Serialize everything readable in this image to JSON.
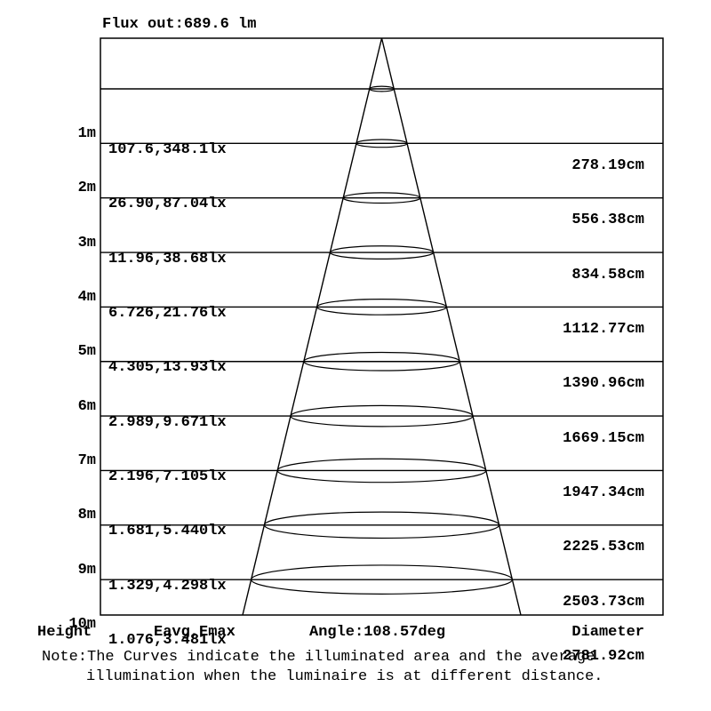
{
  "title": "Flux out:689.6 lm",
  "footer": {
    "height_label": "Height",
    "eavg_emax_label": "Eavg,Emax",
    "angle_label": "Angle:108.57deg",
    "diameter_label": "Diameter"
  },
  "note": {
    "line1": "Note:The Curves indicate the illuminated area and the average",
    "line2": "illumination when the luminaire is at different distance."
  },
  "rows": [
    {
      "height_label": "1m",
      "eavg_emax": "107.6,348.1lx",
      "diameter": "278.19cm"
    },
    {
      "height_label": "2m",
      "eavg_emax": "26.90,87.04lx",
      "diameter": "556.38cm"
    },
    {
      "height_label": "3m",
      "eavg_emax": "11.96,38.68lx",
      "diameter": "834.58cm"
    },
    {
      "height_label": "4m",
      "eavg_emax": "6.726,21.76lx",
      "diameter": "1112.77cm"
    },
    {
      "height_label": "5m",
      "eavg_emax": "4.305,13.93lx",
      "diameter": "1390.96cm"
    },
    {
      "height_label": "6m",
      "eavg_emax": "2.989,9.671lx",
      "diameter": "1669.15cm"
    },
    {
      "height_label": "7m",
      "eavg_emax": "2.196,7.105lx",
      "diameter": "1947.34cm"
    },
    {
      "height_label": "8m",
      "eavg_emax": "1.681,5.440lx",
      "diameter": "2225.53cm"
    },
    {
      "height_label": "9m",
      "eavg_emax": "1.329,4.298lx",
      "diameter": "2503.73cm"
    },
    {
      "height_label": "10m",
      "eavg_emax": "1.076,3.481lx",
      "diameter": "2781.92cm"
    }
  ],
  "colors": {
    "ink": "#000000",
    "background": "#ffffff"
  },
  "chart_data": {
    "type": "table",
    "title": "Flux out:689.6 lm",
    "flux_out_lm": 689.6,
    "beam_angle_deg": 108.57,
    "columns": [
      "Height",
      "Eavg,Emax",
      "Diameter"
    ],
    "heights_m": [
      1,
      2,
      3,
      4,
      5,
      6,
      7,
      8,
      9,
      10
    ],
    "eavg_lx": [
      107.6,
      26.9,
      11.96,
      6.726,
      4.305,
      2.989,
      2.196,
      1.681,
      1.329,
      1.076
    ],
    "emax_lx": [
      348.1,
      87.04,
      38.68,
      21.76,
      13.93,
      9.671,
      7.105,
      5.44,
      4.298,
      3.481
    ],
    "diameter_cm": [
      278.19,
      556.38,
      834.58,
      1112.77,
      1390.96,
      1669.15,
      1947.34,
      2225.53,
      2503.73,
      2781.92
    ],
    "note": "The Curves indicate the illuminated area and the average illumination when the luminaire is at different distance.",
    "legend_position": "none",
    "grid": "rows"
  }
}
